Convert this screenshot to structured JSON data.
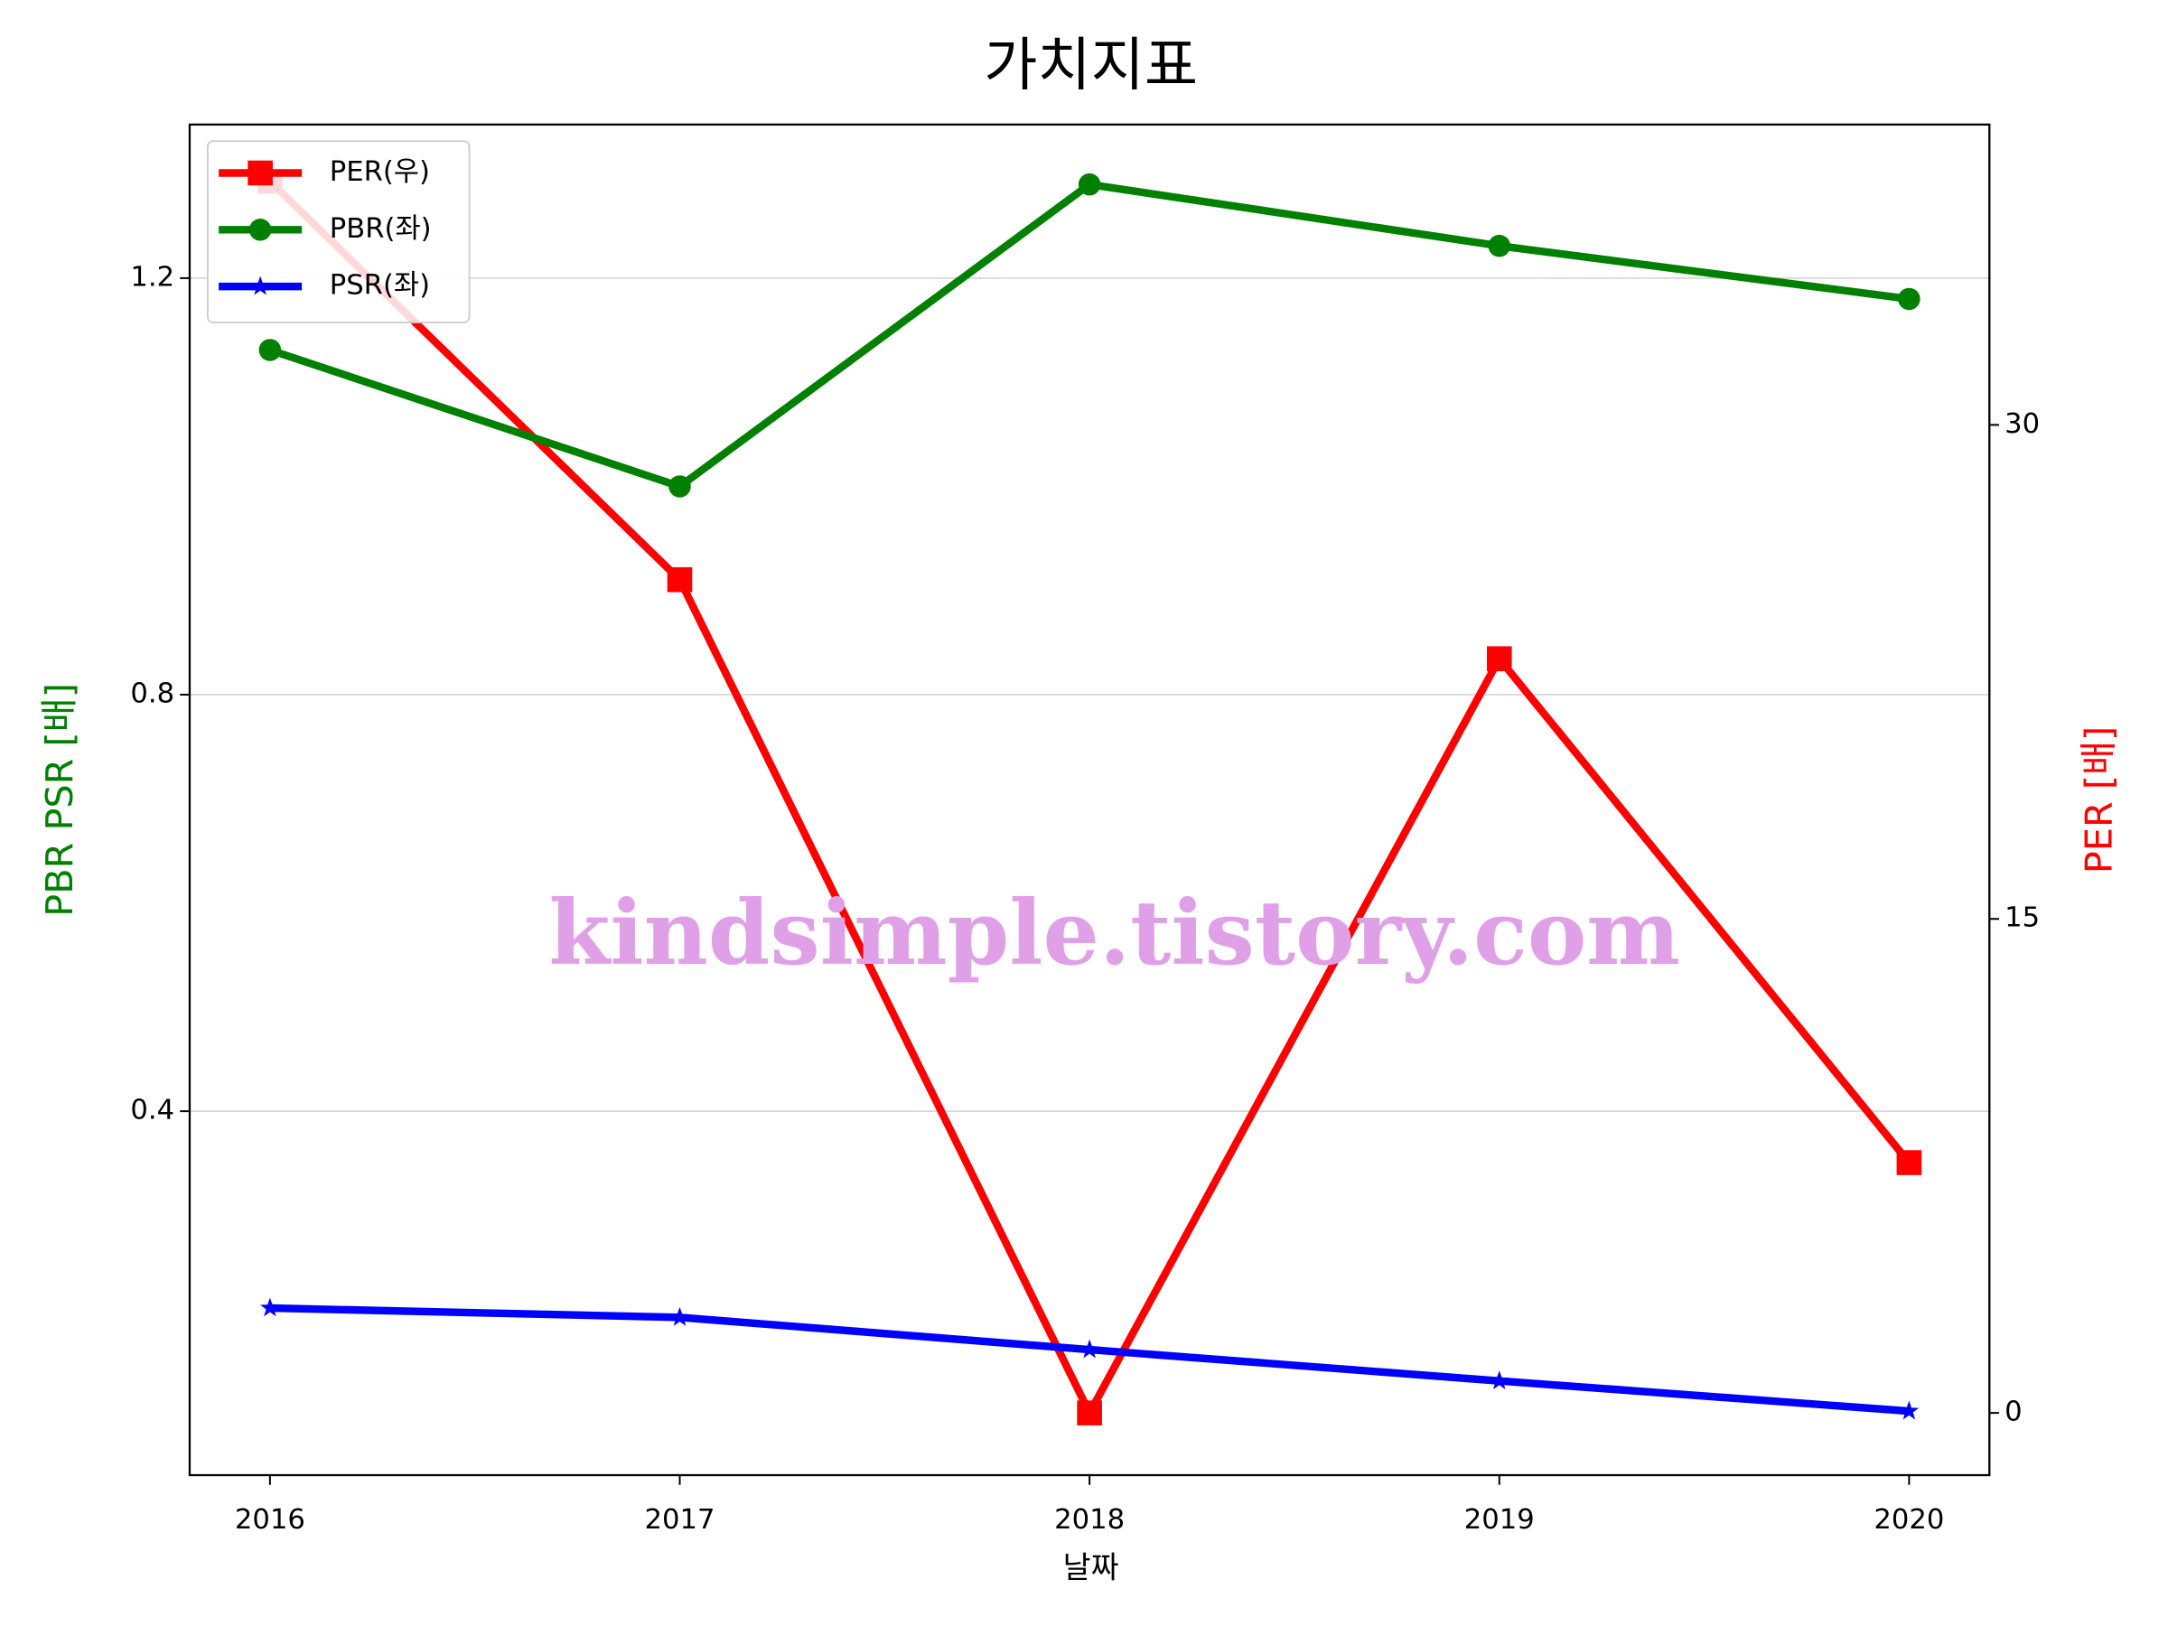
{
  "chart_data": {
    "type": "line",
    "title": "가치지표",
    "xlabel": "날짜",
    "ylabel": "PBR PSR [배]",
    "y2label": "PER [배]",
    "watermark": "kindsimple.tistory.com",
    "x": [
      2016,
      2017,
      2018,
      2019,
      2020
    ],
    "xlim": [
      2015.804,
      2020.196
    ],
    "xticks": [
      2016,
      2017,
      2018,
      2019,
      2020
    ],
    "ylim": [
      0.0505,
      1.3475
    ],
    "yticks": [
      0.4,
      0.8,
      1.2
    ],
    "y2lim": [
      -1.89,
      39.12
    ],
    "y2ticks": [
      0,
      15,
      30
    ],
    "grid": true,
    "legend": "upper left",
    "series": [
      {
        "name": "PER(우)",
        "color": "#ff0000",
        "marker": "square",
        "axis": "y2",
        "values": [
          37.4,
          25.3,
          0,
          22.9,
          7.6
        ]
      },
      {
        "name": "PBR(좌)",
        "color": "#008000",
        "marker": "circle",
        "values": [
          1.131,
          1.0,
          1.29,
          1.231,
          1.18
        ]
      },
      {
        "name": "PSR(좌)",
        "color": "#0000ff",
        "marker": "star",
        "values": [
          0.211,
          0.202,
          0.171,
          0.141,
          0.112
        ]
      }
    ]
  }
}
